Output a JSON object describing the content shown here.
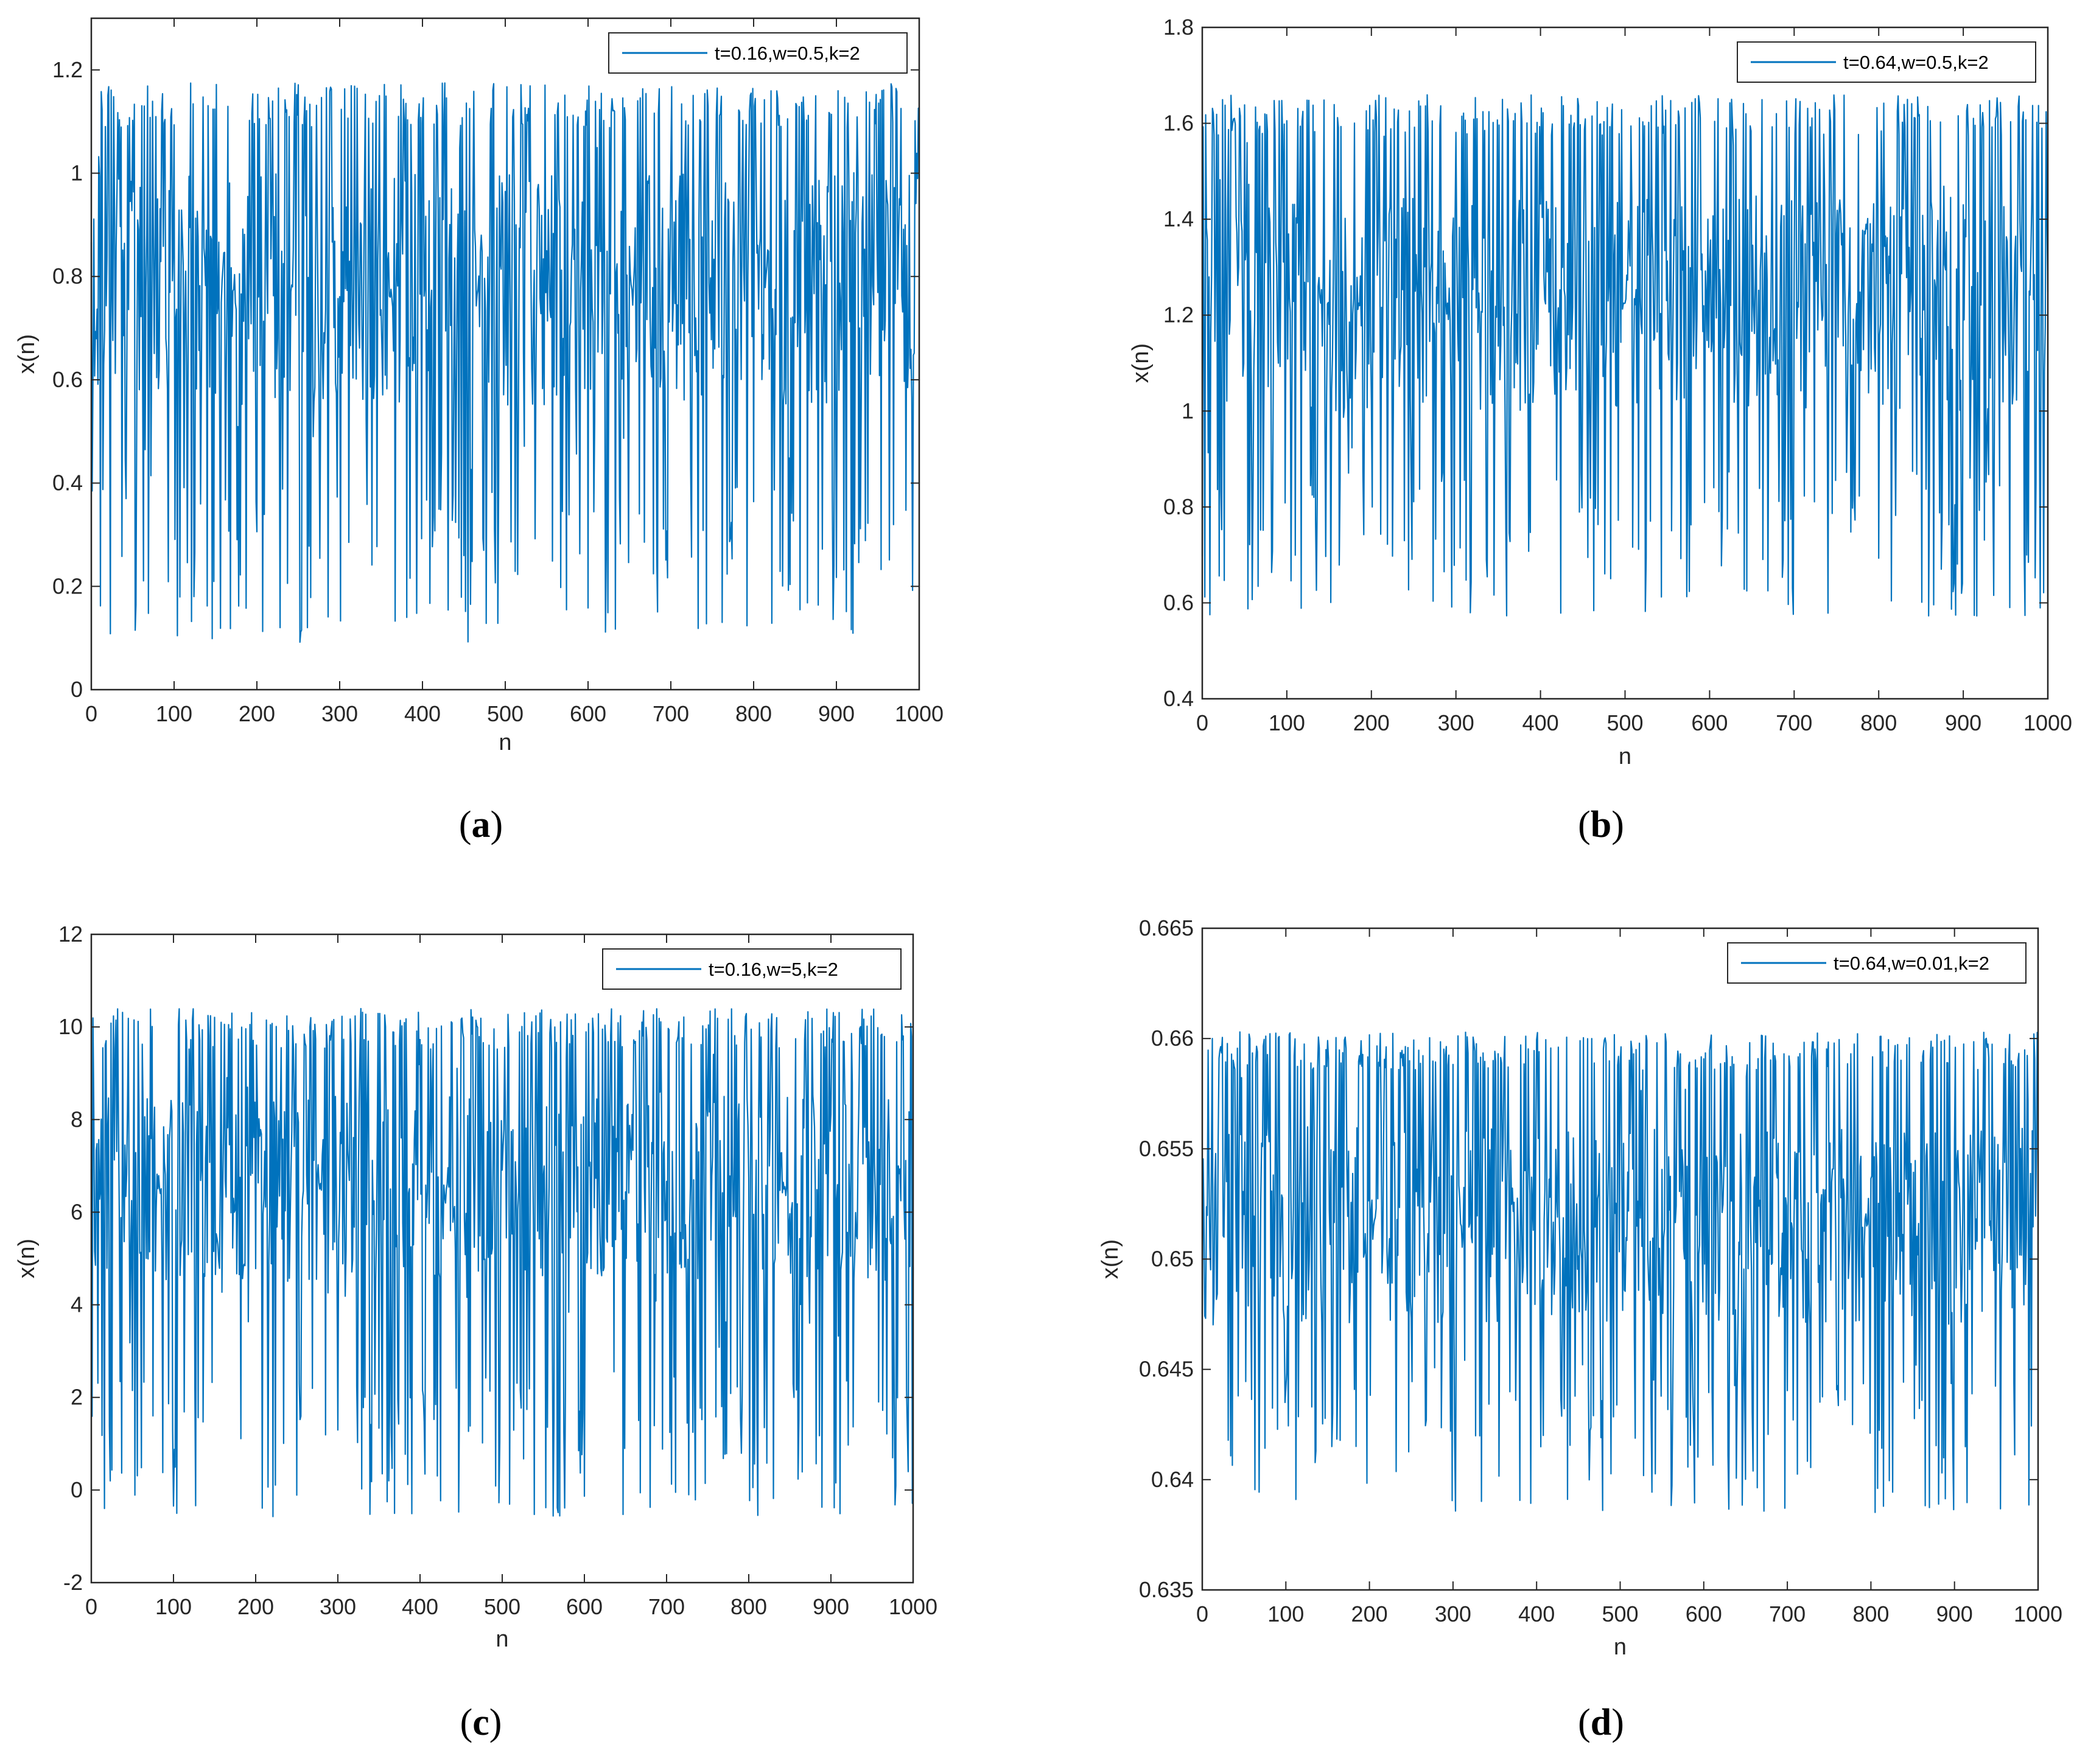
{
  "figure": {
    "panels": [
      {
        "id": "a",
        "label_open": "(",
        "label_letter": "a",
        "label_close": ")"
      },
      {
        "id": "b",
        "label_open": "(",
        "label_letter": "b",
        "label_close": ")"
      },
      {
        "id": "c",
        "label_open": "(",
        "label_letter": "c",
        "label_close": ")"
      },
      {
        "id": "d",
        "label_open": "(",
        "label_letter": "d",
        "label_close": ")"
      }
    ]
  },
  "colors": {
    "line": "#0072BD",
    "line_dark": "#0066B3",
    "axis": "#262626"
  },
  "chart_data": [
    {
      "type": "line",
      "title": "",
      "xlabel": "n",
      "ylabel": "x(n)",
      "xlim": [
        0,
        1000
      ],
      "ylim": [
        0,
        1.3
      ],
      "xticks": [
        0,
        100,
        200,
        300,
        400,
        500,
        600,
        700,
        800,
        900,
        1000
      ],
      "xtick_labels": [
        "0",
        "100",
        "200",
        "300",
        "400",
        "500",
        "600",
        "700",
        "800",
        "900",
        "1000"
      ],
      "yticks": [
        0,
        0.2,
        0.4,
        0.6,
        0.8,
        1.0,
        1.2
      ],
      "ytick_labels": [
        "0",
        "0.2",
        "0.4",
        "0.6",
        "0.8",
        "1",
        "1.2"
      ],
      "legend": "t=0.16,w=0.5,k=2",
      "legend_position": "top-right",
      "series": [
        {
          "name": "t=0.16,w=0.5,k=2",
          "n_points": 1000,
          "min": 0.09,
          "max": 1.175,
          "dense_band": [
            0.55,
            1.0
          ],
          "gap_positions": [
            172,
            362,
            467,
            653
          ]
        }
      ]
    },
    {
      "type": "line",
      "title": "",
      "xlabel": "n",
      "ylabel": "x(n)",
      "xlim": [
        0,
        1000
      ],
      "ylim": [
        0.4,
        1.8
      ],
      "xticks": [
        0,
        100,
        200,
        300,
        400,
        500,
        600,
        700,
        800,
        900,
        1000
      ],
      "xtick_labels": [
        "0",
        "100",
        "200",
        "300",
        "400",
        "500",
        "600",
        "700",
        "800",
        "900",
        "1000"
      ],
      "yticks": [
        0.4,
        0.6,
        0.8,
        1.0,
        1.2,
        1.4,
        1.6,
        1.8
      ],
      "ytick_labels": [
        "0.4",
        "0.6",
        "0.8",
        "1",
        "1.2",
        "1.4",
        "1.6",
        "1.8"
      ],
      "legend": "t=0.64,w=0.5,k=2",
      "legend_position": "top-right",
      "series": [
        {
          "name": "t=0.64,w=0.5,k=2",
          "n_points": 1000,
          "min": 0.57,
          "max": 1.66,
          "dense_band": [
            1.0,
            1.45
          ],
          "gap_positions": [
            140,
            185,
            290,
            500
          ]
        }
      ]
    },
    {
      "type": "line",
      "title": "",
      "xlabel": "n",
      "ylabel": "x(n)",
      "xlim": [
        0,
        1000
      ],
      "ylim": [
        -2,
        12
      ],
      "xticks": [
        0,
        100,
        200,
        300,
        400,
        500,
        600,
        700,
        800,
        900,
        1000
      ],
      "xtick_labels": [
        "0",
        "100",
        "200",
        "300",
        "400",
        "500",
        "600",
        "700",
        "800",
        "900",
        "1000"
      ],
      "yticks": [
        -2,
        0,
        2,
        4,
        6,
        8,
        10,
        12
      ],
      "ytick_labels": [
        "-2",
        "0",
        "2",
        "4",
        "6",
        "8",
        "10",
        "12"
      ],
      "legend": "t=0.16,w=5,k=2",
      "legend_position": "top-right",
      "series": [
        {
          "name": "t=0.16,w=5,k=2",
          "n_points": 1000,
          "min": -0.6,
          "max": 10.4,
          "dense_band": [
            4.5,
            8.5
          ],
          "gap_positions": [
            83,
            278,
            432,
            843
          ]
        }
      ]
    },
    {
      "type": "line",
      "title": "",
      "xlabel": "n",
      "ylabel": "x(n)",
      "xlim": [
        0,
        1000
      ],
      "ylim": [
        0.635,
        0.665
      ],
      "xticks": [
        0,
        100,
        200,
        300,
        400,
        500,
        600,
        700,
        800,
        900,
        1000
      ],
      "xtick_labels": [
        "0",
        "100",
        "200",
        "300",
        "400",
        "500",
        "600",
        "700",
        "800",
        "900",
        "1000"
      ],
      "yticks": [
        0.635,
        0.64,
        0.645,
        0.65,
        0.655,
        0.66,
        0.665
      ],
      "ytick_labels": [
        "0.635",
        "0.64",
        "0.645",
        "0.65",
        "0.655",
        "0.66",
        "0.665"
      ],
      "legend": "t=0.64,w=0.01,k=2",
      "legend_position": "top-right",
      "series": [
        {
          "name": "t=0.64,w=0.01,k=2",
          "n_points": 1000,
          "min": 0.6385,
          "max": 0.6603,
          "dense_band": [
            0.647,
            0.656
          ],
          "gap_positions": [
            205,
            310,
            795
          ]
        }
      ]
    }
  ]
}
